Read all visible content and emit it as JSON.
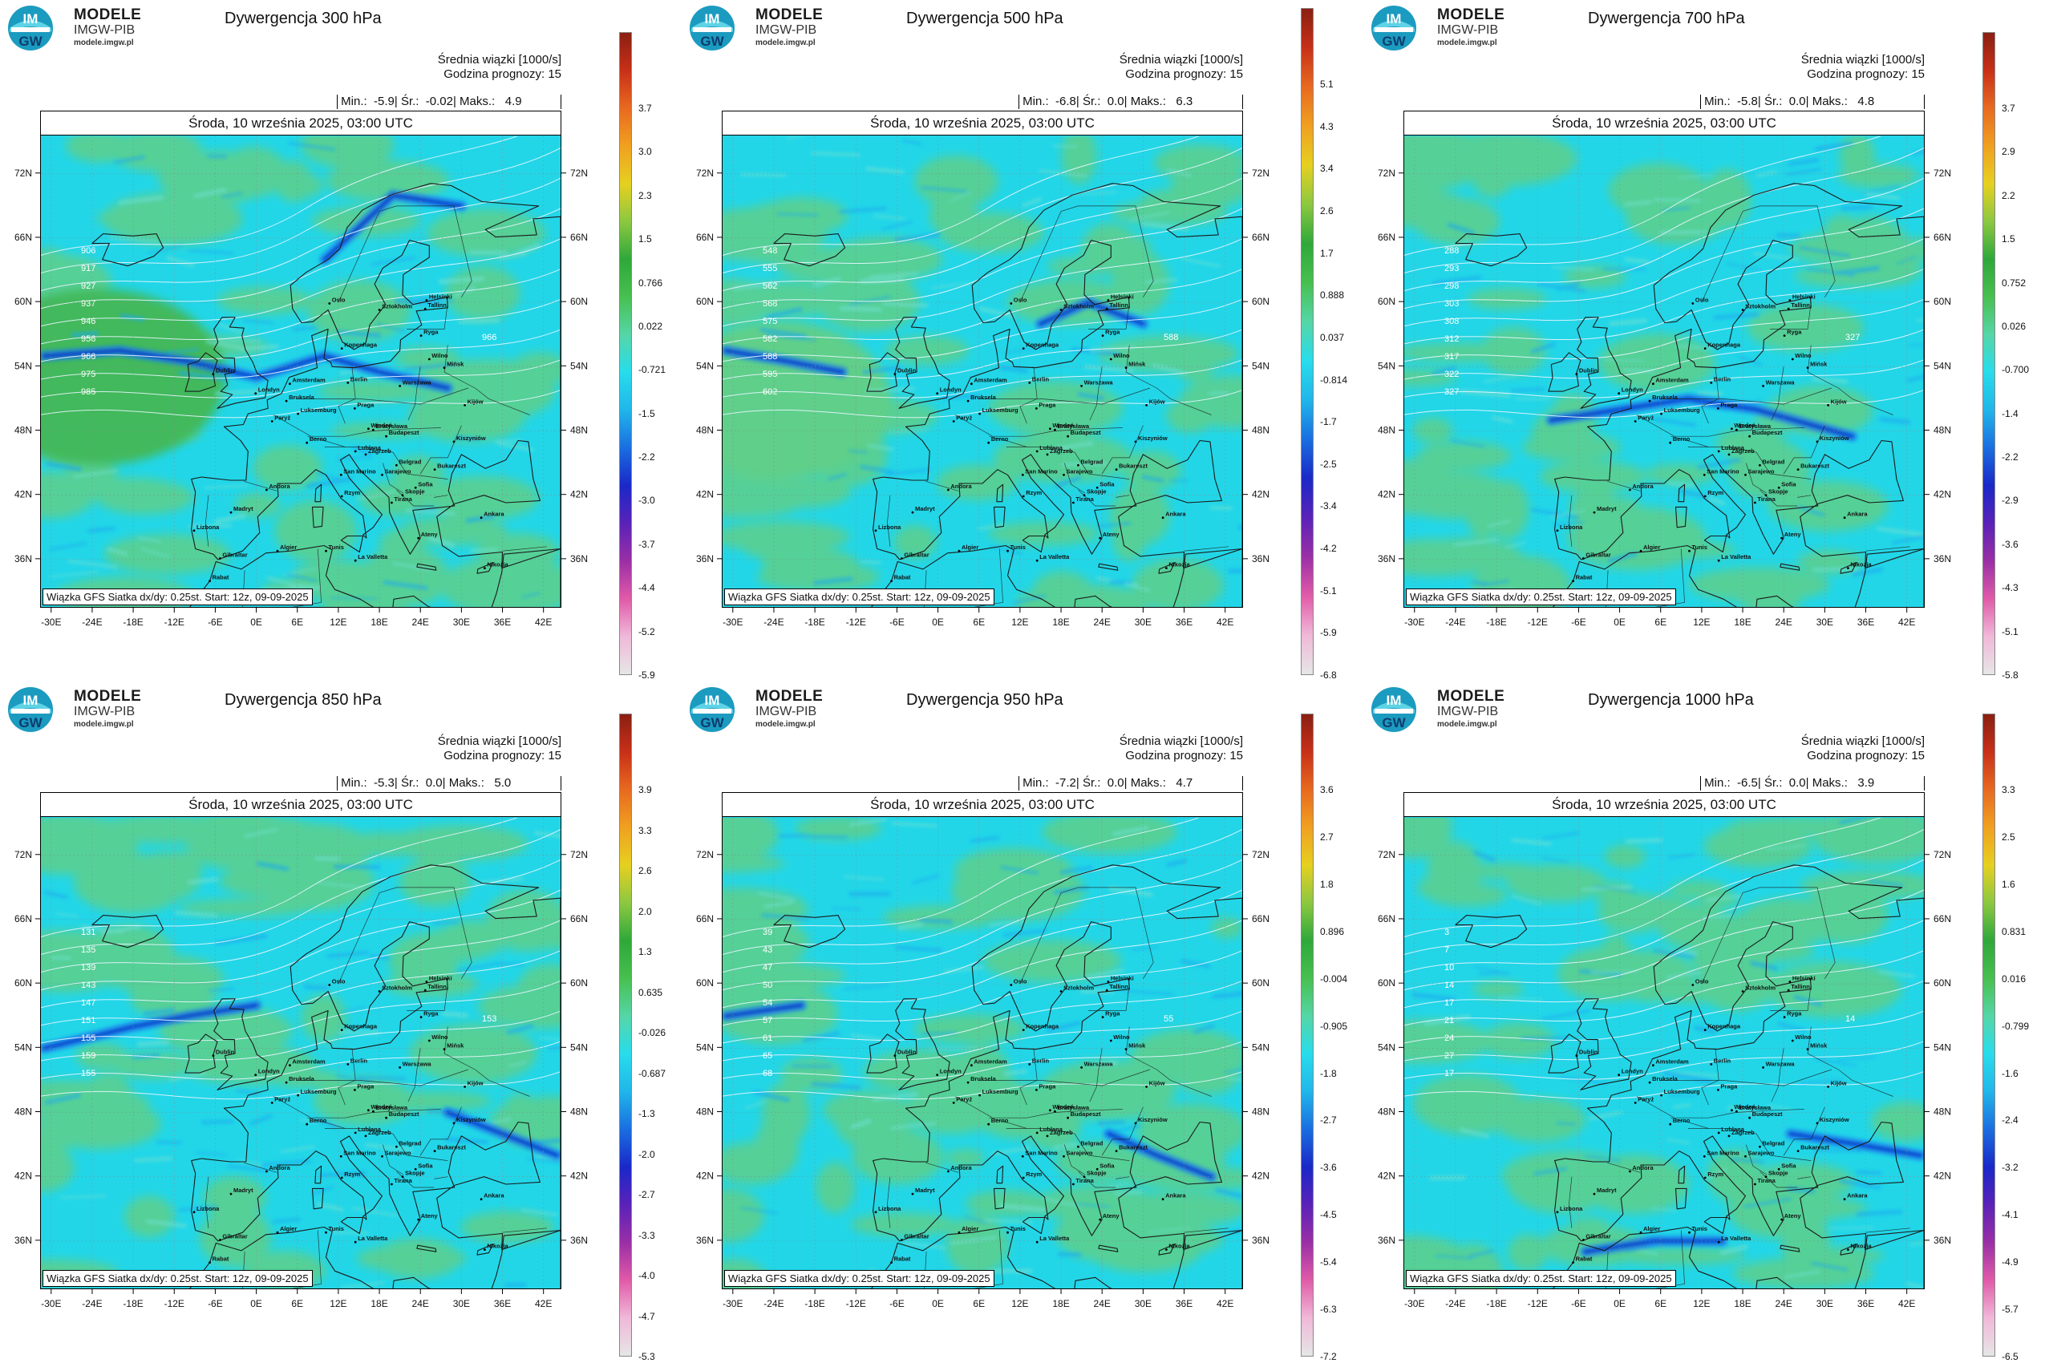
{
  "logo": {
    "line1": "MODELE",
    "line2": "IMGW-PIB",
    "line3": "modele.imgw.pl",
    "badge_top": "IM",
    "badge_bottom": "GW"
  },
  "common": {
    "subtitle": "Średnia wiązki [1000/s]",
    "forecast_hour": "Godzina prognozy: 15",
    "date": "Środa, 10 września 2025, 03:00 UTC",
    "footer": "Wiązka GFS Siatka dx/dy: 0.25st. Start: 12z, 09-09-2025",
    "stat_min_label": "Min.:",
    "stat_mean_label": "Śr.:",
    "stat_max_label": "Maks.:",
    "lon_ticks": [
      "-30E",
      "-24E",
      "-18E",
      "-12E",
      "-6E",
      "0E",
      "6E",
      "12E",
      "18E",
      "24E",
      "30E",
      "36E",
      "42E"
    ],
    "lat_ticks": [
      "72N",
      "66N",
      "60N",
      "54N",
      "48N",
      "42N",
      "36N"
    ]
  },
  "colors": {
    "background_cyan": "#22d6e8",
    "green": "#5fcf8a",
    "deep_blue": "#1030c8",
    "contour": "#e8f6ff",
    "coast": "#1a1a1a",
    "colorbar_stops": [
      "#e6e6e6",
      "#f0b8d8",
      "#e05aa8",
      "#9b2fa6",
      "#5a22b8",
      "#1a28c8",
      "#1a6ee0",
      "#20b6ea",
      "#28dceb",
      "#55d6a8",
      "#48c050",
      "#2fa83a",
      "#8cc840",
      "#e6d020",
      "#f0a020",
      "#e86a20",
      "#c83018",
      "#8a1f12"
    ]
  },
  "panels": [
    {
      "title": "Dywergencja 300 hPa",
      "min": "-5.9",
      "mean": "-0.02",
      "max": "4.9",
      "colorbar_ticks": [
        "3.7",
        "3.0",
        "2.3",
        "1.5",
        "0.766",
        "0.022",
        "-0.721",
        "-1.5",
        "-2.2",
        "-3.0",
        "-3.7",
        "-4.4",
        "-5.2",
        "-5.9"
      ],
      "contour_labels": [
        "906",
        "917",
        "927",
        "937",
        "946",
        "956",
        "966",
        "975",
        "985",
        "966"
      ]
    },
    {
      "title": "Dywergencja 500 hPa",
      "min": "-6.8",
      "mean": "0.0",
      "max": "6.3",
      "colorbar_ticks": [
        "5.1",
        "4.3",
        "3.4",
        "2.6",
        "1.7",
        "0.888",
        "0.037",
        "-0.814",
        "-1.7",
        "-2.5",
        "-3.4",
        "-4.2",
        "-5.1",
        "-5.9",
        "-6.8"
      ],
      "contour_labels": [
        "548",
        "555",
        "562",
        "568",
        "575",
        "582",
        "588",
        "595",
        "602",
        "588"
      ]
    },
    {
      "title": "Dywergencja 700 hPa",
      "min": "-5.8",
      "mean": "0.0",
      "max": "4.8",
      "colorbar_ticks": [
        "3.7",
        "2.9",
        "2.2",
        "1.5",
        "0.752",
        "0.026",
        "-0.700",
        "-1.4",
        "-2.2",
        "-2.9",
        "-3.6",
        "-4.3",
        "-5.1",
        "-5.8"
      ],
      "contour_labels": [
        "288",
        "293",
        "298",
        "303",
        "308",
        "312",
        "317",
        "322",
        "327",
        "327"
      ]
    },
    {
      "title": "Dywergencja 850 hPa",
      "min": "-5.3",
      "mean": "0.0",
      "max": "5.0",
      "colorbar_ticks": [
        "3.9",
        "3.3",
        "2.6",
        "2.0",
        "1.3",
        "0.635",
        "-0.026",
        "-0.687",
        "-1.3",
        "-2.0",
        "-2.7",
        "-3.3",
        "-4.0",
        "-4.7",
        "-5.3"
      ],
      "contour_labels": [
        "131",
        "135",
        "139",
        "143",
        "147",
        "151",
        "155",
        "159",
        "155",
        "153"
      ]
    },
    {
      "title": "Dywergencja 950 hPa",
      "min": "-7.2",
      "mean": "0.0",
      "max": "4.7",
      "colorbar_ticks": [
        "3.6",
        "2.7",
        "1.8",
        "0.896",
        "-0.004",
        "-0.905",
        "-1.8",
        "-2.7",
        "-3.6",
        "-4.5",
        "-5.4",
        "-6.3",
        "-7.2"
      ],
      "contour_labels": [
        "39",
        "43",
        "47",
        "50",
        "54",
        "57",
        "61",
        "65",
        "68",
        "55"
      ]
    },
    {
      "title": "Dywergencja 1000 hPa",
      "min": "-6.5",
      "mean": "0.0",
      "max": "3.9",
      "colorbar_ticks": [
        "3.3",
        "2.5",
        "1.6",
        "0.831",
        "0.016",
        "-0.799",
        "-1.6",
        "-2.4",
        "-3.2",
        "-4.1",
        "-4.9",
        "-5.7",
        "-6.5"
      ],
      "contour_labels": [
        "3",
        "7",
        "10",
        "14",
        "17",
        "21",
        "24",
        "27",
        "17",
        "14"
      ]
    }
  ],
  "cities": [
    "Oslo",
    "Sztokholm",
    "Helsinki",
    "Tallinn",
    "Ryga",
    "Wilno",
    "Mińsk",
    "Kopenhaga",
    "Berlin",
    "Warszawa",
    "Amsterdam",
    "Bruksela",
    "Londyn",
    "Dublin",
    "Paryż",
    "Luksemburg",
    "Praga",
    "Wiedeń",
    "Bratysława",
    "Budapeszt",
    "Kiszyniów",
    "Kijów",
    "Berno",
    "Lublana",
    "Zagrzeb",
    "Sarajewo",
    "Belgrad",
    "Bukareszt",
    "Sofia",
    "Skopje",
    "Tirana",
    "Rzym",
    "San Marino",
    "Andora",
    "Madryt",
    "Lizbona",
    "Ateny",
    "Ankara",
    "Algier",
    "Tunis",
    "La Valletta",
    "Gibraltar",
    "Rabat",
    "Nikozja"
  ]
}
